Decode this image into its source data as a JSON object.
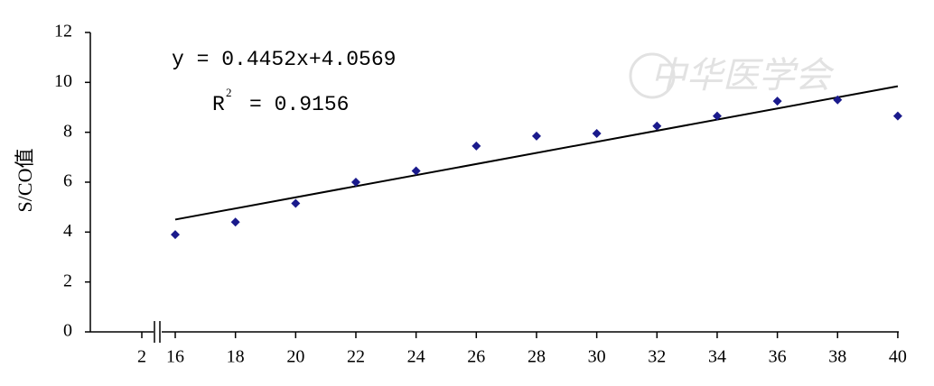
{
  "chart_data": {
    "type": "scatter",
    "y_label": "S/CO值",
    "x": [
      16,
      18,
      20,
      22,
      24,
      26,
      28,
      30,
      32,
      34,
      36,
      38,
      40
    ],
    "series": [
      {
        "color": "#1a1a8c",
        "values": [
          3.9,
          4.4,
          5.15,
          6.0,
          6.45,
          7.45,
          7.85,
          7.95,
          8.25,
          8.65,
          9.25,
          9.3,
          8.65
        ]
      }
    ],
    "ylim": [
      0,
      12
    ],
    "yticks": [
      0,
      2,
      4,
      6,
      8,
      10,
      12
    ],
    "xticks": [
      2,
      16,
      18,
      20,
      22,
      24,
      26,
      28,
      30,
      32,
      34,
      36,
      38,
      40
    ],
    "trendline": {
      "slope": 0.4452,
      "intercept": 4.0569
    },
    "equation": "y = 0.4452x+4.0569",
    "r_squared": {
      "symbol": "R",
      "sup": "2",
      "text": "= 0.9156"
    },
    "watermark": "中华医学会"
  }
}
